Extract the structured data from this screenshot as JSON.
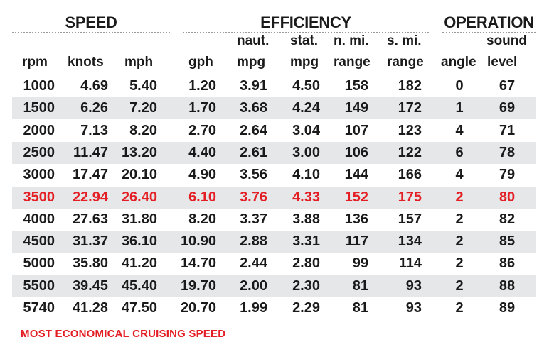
{
  "chart_data": {
    "type": "table",
    "groups": [
      {
        "key": "speed",
        "label": "SPEED"
      },
      {
        "key": "efficiency",
        "label": "EFFICIENCY"
      },
      {
        "key": "operation",
        "label": "OPERATION"
      }
    ],
    "columns": [
      {
        "key": "rpm",
        "line1": "",
        "line2": "rpm"
      },
      {
        "key": "knots",
        "line1": "",
        "line2": "knots"
      },
      {
        "key": "mph",
        "line1": "",
        "line2": "mph"
      },
      {
        "key": "gph",
        "line1": "",
        "line2": "gph"
      },
      {
        "key": "naut_mpg",
        "line1": "naut.",
        "line2": "mpg"
      },
      {
        "key": "stat_mpg",
        "line1": "stat.",
        "line2": "mpg"
      },
      {
        "key": "nmi_range",
        "line1": "n. mi.",
        "line2": "range"
      },
      {
        "key": "smi_range",
        "line1": "s. mi.",
        "line2": "range"
      },
      {
        "key": "angle",
        "line1": "",
        "line2": "angle"
      },
      {
        "key": "sound",
        "line1": "sound",
        "line2": "level"
      }
    ],
    "rows": [
      [
        "1000",
        "4.69",
        "5.40",
        "1.20",
        "3.91",
        "4.50",
        "158",
        "182",
        "0",
        "67"
      ],
      [
        "1500",
        "6.26",
        "7.20",
        "1.70",
        "3.68",
        "4.24",
        "149",
        "172",
        "1",
        "69"
      ],
      [
        "2000",
        "7.13",
        "8.20",
        "2.70",
        "2.64",
        "3.04",
        "107",
        "123",
        "4",
        "71"
      ],
      [
        "2500",
        "11.47",
        "13.20",
        "4.40",
        "2.61",
        "3.00",
        "106",
        "122",
        "6",
        "78"
      ],
      [
        "3000",
        "17.47",
        "20.10",
        "4.90",
        "3.56",
        "4.10",
        "144",
        "166",
        "4",
        "79"
      ],
      [
        "3500",
        "22.94",
        "26.40",
        "6.10",
        "3.76",
        "4.33",
        "152",
        "175",
        "2",
        "80"
      ],
      [
        "4000",
        "27.63",
        "31.80",
        "8.20",
        "3.37",
        "3.88",
        "136",
        "157",
        "2",
        "82"
      ],
      [
        "4500",
        "31.37",
        "36.10",
        "10.90",
        "2.88",
        "3.31",
        "117",
        "134",
        "2",
        "85"
      ],
      [
        "5000",
        "35.80",
        "41.20",
        "14.70",
        "2.44",
        "2.80",
        "99",
        "114",
        "2",
        "86"
      ],
      [
        "5500",
        "39.45",
        "45.40",
        "19.70",
        "2.00",
        "2.30",
        "81",
        "93",
        "2",
        "88"
      ],
      [
        "5740",
        "41.28",
        "47.50",
        "20.70",
        "1.99",
        "2.29",
        "81",
        "93",
        "2",
        "89"
      ]
    ],
    "highlight_row_rpm": "3500",
    "highlight_color": "#e31e24",
    "row_shade_color": "#e6e7e8",
    "footnote": "MOST ECONOMICAL CRUISING SPEED"
  }
}
